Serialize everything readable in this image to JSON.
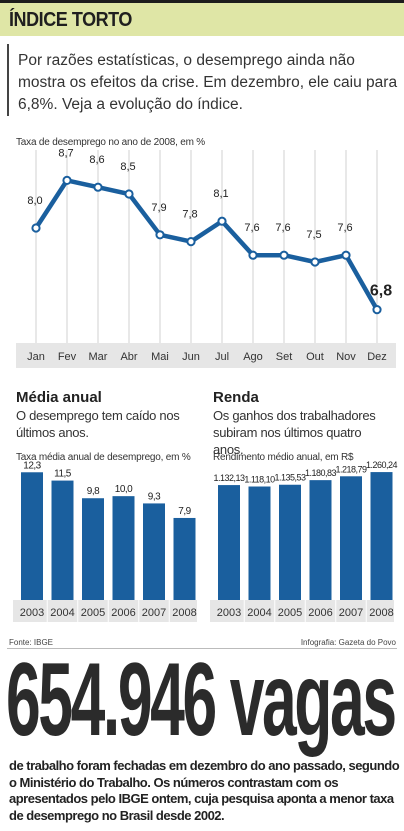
{
  "header": {
    "title": "ÍNDICE TORTO"
  },
  "intro": {
    "text": "Por razões estatísticas, o desemprego ainda não mostra os efeitos da crise. Em dezembro, ele caiu para 6,8%. Veja a evolução do índice."
  },
  "colors": {
    "accent": "#1a5f9e",
    "header_bg": "#dfe6a6",
    "axis_band": "#e6e6e6",
    "grid": "#d0d0d0"
  },
  "chart_data": [
    {
      "type": "line",
      "title": "Taxa de desemprego no ano de 2008, em %",
      "categories": [
        "Jan",
        "Fev",
        "Mar",
        "Abr",
        "Mai",
        "Jun",
        "Jul",
        "Ago",
        "Set",
        "Out",
        "Nov",
        "Dez"
      ],
      "values": [
        8.0,
        8.7,
        8.6,
        8.5,
        7.9,
        7.8,
        8.1,
        7.6,
        7.6,
        7.5,
        7.6,
        6.8
      ],
      "labels": [
        "8,0",
        "8,7",
        "8,6",
        "8,5",
        "7,9",
        "7,8",
        "8,1",
        "7,6",
        "7,6",
        "7,5",
        "7,6",
        "6,8"
      ],
      "ylim": [
        6.5,
        9.0
      ],
      "grid": "vertical"
    },
    {
      "type": "bar",
      "section_title": "Média anual",
      "section_desc": "O desemprego tem caído nos últimos anos.",
      "title": "Taxa média anual de desemprego, em %",
      "categories": [
        "2003",
        "2004",
        "2005",
        "2006",
        "2007",
        "2008"
      ],
      "values": [
        12.3,
        11.5,
        9.8,
        10.0,
        9.3,
        7.9
      ],
      "labels": [
        "12,3",
        "11,5",
        "9,8",
        "10,0",
        "9,3",
        "7,9"
      ],
      "ylim": [
        0,
        13
      ]
    },
    {
      "type": "bar",
      "section_title": "Renda",
      "section_desc": "Os ganhos dos trabalhadores subiram nos últimos quatro anos.",
      "title": "Rendimento médio anual, em R$",
      "categories": [
        "2003",
        "2004",
        "2005",
        "2006",
        "2007",
        "2008"
      ],
      "values": [
        1132.13,
        1118.1,
        1135.53,
        1180.83,
        1218.79,
        1260.24
      ],
      "labels": [
        "1.132,13",
        "1.118,10",
        "1.135,53",
        "1.180,83",
        "1.218,79",
        "1.260,24"
      ],
      "ylim": [
        0,
        1330
      ]
    }
  ],
  "footer": {
    "source": "Fonte: IBGE",
    "credit": "Infografia: Gazeta do Povo"
  },
  "headline": {
    "big": "654.946 vagas"
  },
  "bottom": {
    "text": "de trabalho foram fechadas em dezembro do ano passado, segundo o Ministério do Trabalho. Os números contrastam com os apresentados pelo IBGE ontem, cuja pesquisa aponta a menor taxa de desemprego no Brasil desde 2002."
  }
}
